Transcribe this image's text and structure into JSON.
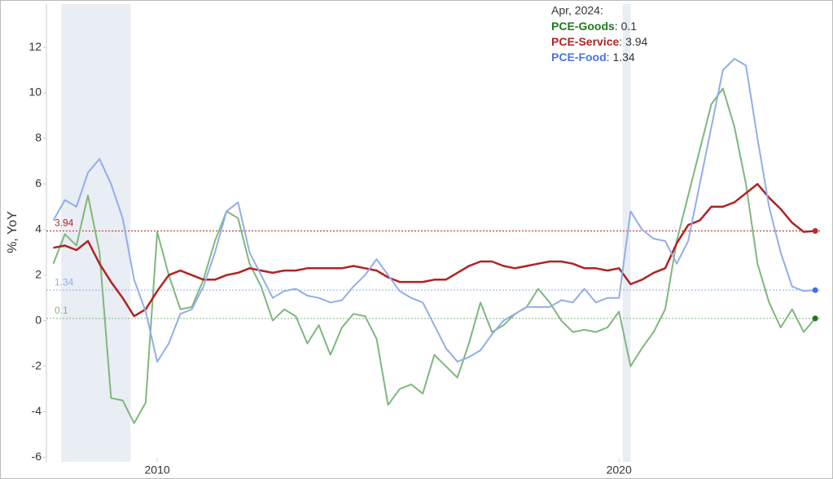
{
  "chart_data": {
    "type": "line",
    "y_label": "%, YoY",
    "annotation": "Apr, 2024:",
    "xlim": [
      2007.6,
      2024.37
    ],
    "xticks": [
      2010,
      2020
    ],
    "ylim": [
      -6.2,
      13.9
    ],
    "yticks": [
      -6,
      -4,
      -2,
      0,
      2,
      4,
      6,
      8,
      10,
      12
    ],
    "grid": false,
    "shaded_ranges": [
      [
        2007.92,
        2009.42
      ],
      [
        2020.08,
        2020.25
      ]
    ],
    "shade_color": "#e9edf4",
    "x": [
      2007.75,
      2008,
      2008.25,
      2008.5,
      2008.75,
      2009,
      2009.25,
      2009.5,
      2009.75,
      2010,
      2010.25,
      2010.5,
      2010.75,
      2011,
      2011.25,
      2011.5,
      2011.75,
      2012,
      2012.25,
      2012.5,
      2012.75,
      2013,
      2013.25,
      2013.5,
      2013.75,
      2014,
      2014.25,
      2014.5,
      2014.75,
      2015,
      2015.25,
      2015.5,
      2015.75,
      2016,
      2016.25,
      2016.5,
      2016.75,
      2017,
      2017.25,
      2017.5,
      2017.75,
      2018,
      2018.25,
      2018.5,
      2018.75,
      2019,
      2019.25,
      2019.5,
      2019.75,
      2020,
      2020.25,
      2020.5,
      2020.75,
      2021,
      2021.25,
      2021.5,
      2021.75,
      2022,
      2022.25,
      2022.5,
      2022.75,
      2023,
      2023.25,
      2023.5,
      2023.75,
      2024,
      2024.25
    ],
    "series": [
      {
        "name": "PCE-Goods",
        "color": "#7fb77e",
        "label_color": "#1e7b1e",
        "dot_color": "#1a7a1a",
        "values": [
          2.5,
          3.8,
          3.3,
          5.5,
          3.0,
          -3.4,
          -3.5,
          -4.5,
          -3.6,
          3.9,
          2.0,
          0.5,
          0.6,
          1.8,
          3.5,
          4.8,
          4.5,
          2.5,
          1.5,
          0.0,
          0.5,
          0.2,
          -1.0,
          -0.2,
          -1.5,
          -0.3,
          0.3,
          0.2,
          -0.8,
          -3.7,
          -3.0,
          -2.8,
          -3.2,
          -1.5,
          -2.0,
          -2.5,
          -1.0,
          0.8,
          -0.5,
          -0.2,
          0.3,
          0.6,
          1.4,
          0.8,
          0.0,
          -0.5,
          -0.4,
          -0.5,
          -0.3,
          0.4,
          -2.0,
          -1.2,
          -0.5,
          0.5,
          3.5,
          5.5,
          7.5,
          9.5,
          10.2,
          8.5,
          6.0,
          2.5,
          0.8,
          -0.3,
          0.5,
          -0.5,
          0.1
        ]
      },
      {
        "name": "PCE-Service",
        "color": "#b22222",
        "label_color": "#b22222",
        "dot_color": "#c0282d",
        "values": [
          3.2,
          3.3,
          3.1,
          3.5,
          2.5,
          1.7,
          1.0,
          0.2,
          0.5,
          1.3,
          2.0,
          2.2,
          2.0,
          1.8,
          1.8,
          2.0,
          2.1,
          2.3,
          2.2,
          2.1,
          2.2,
          2.2,
          2.3,
          2.3,
          2.3,
          2.3,
          2.4,
          2.3,
          2.2,
          1.9,
          1.7,
          1.7,
          1.7,
          1.8,
          1.8,
          2.1,
          2.4,
          2.6,
          2.6,
          2.4,
          2.3,
          2.4,
          2.5,
          2.6,
          2.6,
          2.5,
          2.3,
          2.3,
          2.2,
          2.3,
          1.6,
          1.8,
          2.1,
          2.3,
          3.4,
          4.2,
          4.4,
          5.0,
          5.0,
          5.2,
          5.6,
          6.0,
          5.4,
          4.9,
          4.3,
          3.9,
          3.94
        ]
      },
      {
        "name": "PCE-Food",
        "color": "#92aee8",
        "label_color": "#4a74e0",
        "dot_color": "#3f6fe0",
        "values": [
          4.4,
          5.3,
          5.0,
          6.5,
          7.1,
          6.0,
          4.5,
          1.8,
          0.4,
          -1.8,
          -1.0,
          0.3,
          0.5,
          1.5,
          3.0,
          4.8,
          5.2,
          3.0,
          2.0,
          1.0,
          1.3,
          1.4,
          1.1,
          1.0,
          0.8,
          0.9,
          1.5,
          2.0,
          2.7,
          2.0,
          1.3,
          1.0,
          0.8,
          -0.2,
          -1.2,
          -1.8,
          -1.6,
          -1.3,
          -0.6,
          0.0,
          0.3,
          0.6,
          0.6,
          0.6,
          0.9,
          0.8,
          1.4,
          0.8,
          1.0,
          1.0,
          4.8,
          4.0,
          3.6,
          3.5,
          2.5,
          3.5,
          6.0,
          8.5,
          11.0,
          11.5,
          11.2,
          8.0,
          5.0,
          3.0,
          1.5,
          1.3,
          1.34
        ]
      }
    ]
  }
}
